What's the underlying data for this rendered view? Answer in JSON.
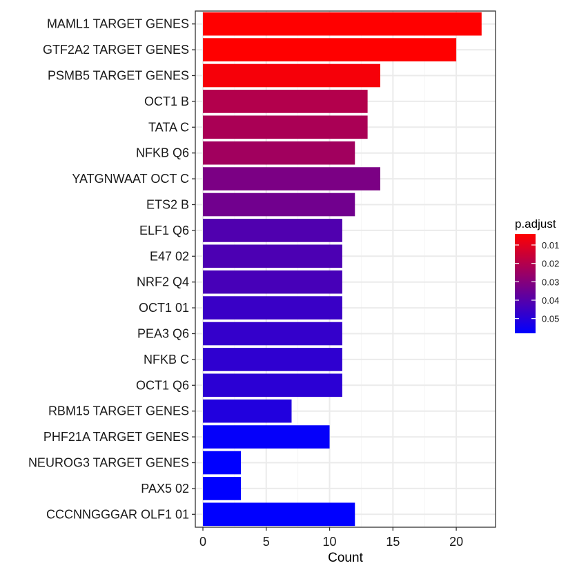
{
  "chart_data": {
    "type": "bar",
    "orientation": "horizontal",
    "xlabel": "Count",
    "ylabel": "",
    "xlim": [
      -0.6,
      23.1
    ],
    "xticks": [
      0,
      5,
      10,
      15,
      20
    ],
    "grid": true,
    "legend_placement": "right",
    "categories": [
      "MAML1 TARGET GENES",
      "GTF2A2 TARGET GENES",
      "PSMB5 TARGET GENES",
      "OCT1 B",
      "TATA C",
      "NFKB Q6",
      "YATGNWAAT OCT C",
      "ETS2 B",
      "ELF1 Q6",
      "E47 02",
      "NRF2 Q4",
      "OCT1 01",
      "PEA3 Q6",
      "NFKB C",
      "OCT1 Q6",
      "RBM15 TARGET GENES",
      "PHF21A TARGET GENES",
      "NEUROG3 TARGET GENES",
      "PAX5 02",
      "CCCNNGGGAR OLF1 01"
    ],
    "values": [
      22,
      20,
      14,
      13,
      13,
      12,
      14,
      12,
      11,
      11,
      11,
      11,
      11,
      11,
      11,
      7,
      10,
      3,
      3,
      12
    ],
    "p_adjust": [
      0.004,
      0.004,
      0.006,
      0.02,
      0.022,
      0.024,
      0.032,
      0.034,
      0.041,
      0.042,
      0.043,
      0.046,
      0.047,
      0.048,
      0.049,
      0.051,
      0.057,
      0.058,
      0.058,
      0.058
    ],
    "legend": {
      "title": "p.adjust",
      "ticks": [
        "0.01",
        "0.02",
        "0.03",
        "0.04",
        "0.05"
      ],
      "tick_values": [
        0.01,
        0.02,
        0.03,
        0.04,
        0.05
      ],
      "range": [
        0.004,
        0.058
      ],
      "color_low": "#FF0000",
      "color_high": "#0000FF"
    },
    "colors": {
      "panel_border": "#333333",
      "grid_major": "#EBEBEB",
      "grid_minor": "#F5F5F5",
      "axis_text": "#1a1a1a"
    }
  }
}
